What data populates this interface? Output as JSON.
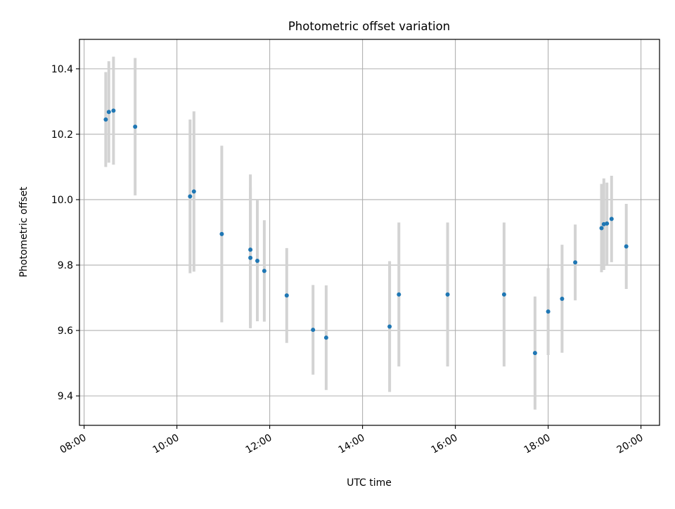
{
  "chart_data": {
    "type": "scatter",
    "title": "Photometric offset variation",
    "xlabel": "UTC time",
    "ylabel": "Photometric offset",
    "x_unit": "UTC time of day (HH:MM)",
    "xlim": [
      "07:54",
      "20:24"
    ],
    "ylim": [
      9.31,
      10.49
    ],
    "x_ticks": [
      "08:00",
      "10:00",
      "12:00",
      "14:00",
      "16:00",
      "18:00",
      "20:00"
    ],
    "y_ticks": [
      9.4,
      9.6,
      9.8,
      10.0,
      10.2,
      10.4
    ],
    "grid": true,
    "colors": {
      "points": "#1f77b4",
      "error_bars": "#d3d3d3",
      "grid": "#b0b0b0"
    },
    "series": [
      {
        "points": [
          {
            "x": "08:28",
            "y": 10.245,
            "err": 0.145
          },
          {
            "x": "08:32",
            "y": 10.268,
            "err": 0.155
          },
          {
            "x": "08:38",
            "y": 10.272,
            "err": 0.165
          },
          {
            "x": "09:06",
            "y": 10.223,
            "err": 0.21
          },
          {
            "x": "10:17",
            "y": 10.01,
            "err": 0.235
          },
          {
            "x": "10:22",
            "y": 10.025,
            "err": 0.245
          },
          {
            "x": "10:58",
            "y": 9.895,
            "err": 0.27
          },
          {
            "x": "11:35",
            "y": 9.847,
            "err": 0.23
          },
          {
            "x": "11:35",
            "y": 9.822,
            "err": 0.215
          },
          {
            "x": "11:44",
            "y": 9.813,
            "err": 0.185
          },
          {
            "x": "11:53",
            "y": 9.782,
            "err": 0.155
          },
          {
            "x": "12:22",
            "y": 9.707,
            "err": 0.145
          },
          {
            "x": "12:56",
            "y": 9.602,
            "err": 0.137
          },
          {
            "x": "13:13",
            "y": 9.578,
            "err": 0.16
          },
          {
            "x": "14:35",
            "y": 9.612,
            "err": 0.2
          },
          {
            "x": "14:47",
            "y": 9.71,
            "err": 0.22
          },
          {
            "x": "15:50",
            "y": 9.71,
            "err": 0.22
          },
          {
            "x": "17:03",
            "y": 9.71,
            "err": 0.22
          },
          {
            "x": "17:43",
            "y": 9.531,
            "err": 0.173
          },
          {
            "x": "18:00",
            "y": 9.658,
            "err": 0.133
          },
          {
            "x": "18:18",
            "y": 9.697,
            "err": 0.165
          },
          {
            "x": "18:35",
            "y": 9.808,
            "err": 0.116
          },
          {
            "x": "19:09",
            "y": 9.913,
            "err": 0.135
          },
          {
            "x": "19:12",
            "y": 9.925,
            "err": 0.14
          },
          {
            "x": "19:16",
            "y": 9.927,
            "err": 0.125
          },
          {
            "x": "19:22",
            "y": 9.941,
            "err": 0.132
          },
          {
            "x": "19:41",
            "y": 9.857,
            "err": 0.13
          }
        ]
      }
    ]
  }
}
